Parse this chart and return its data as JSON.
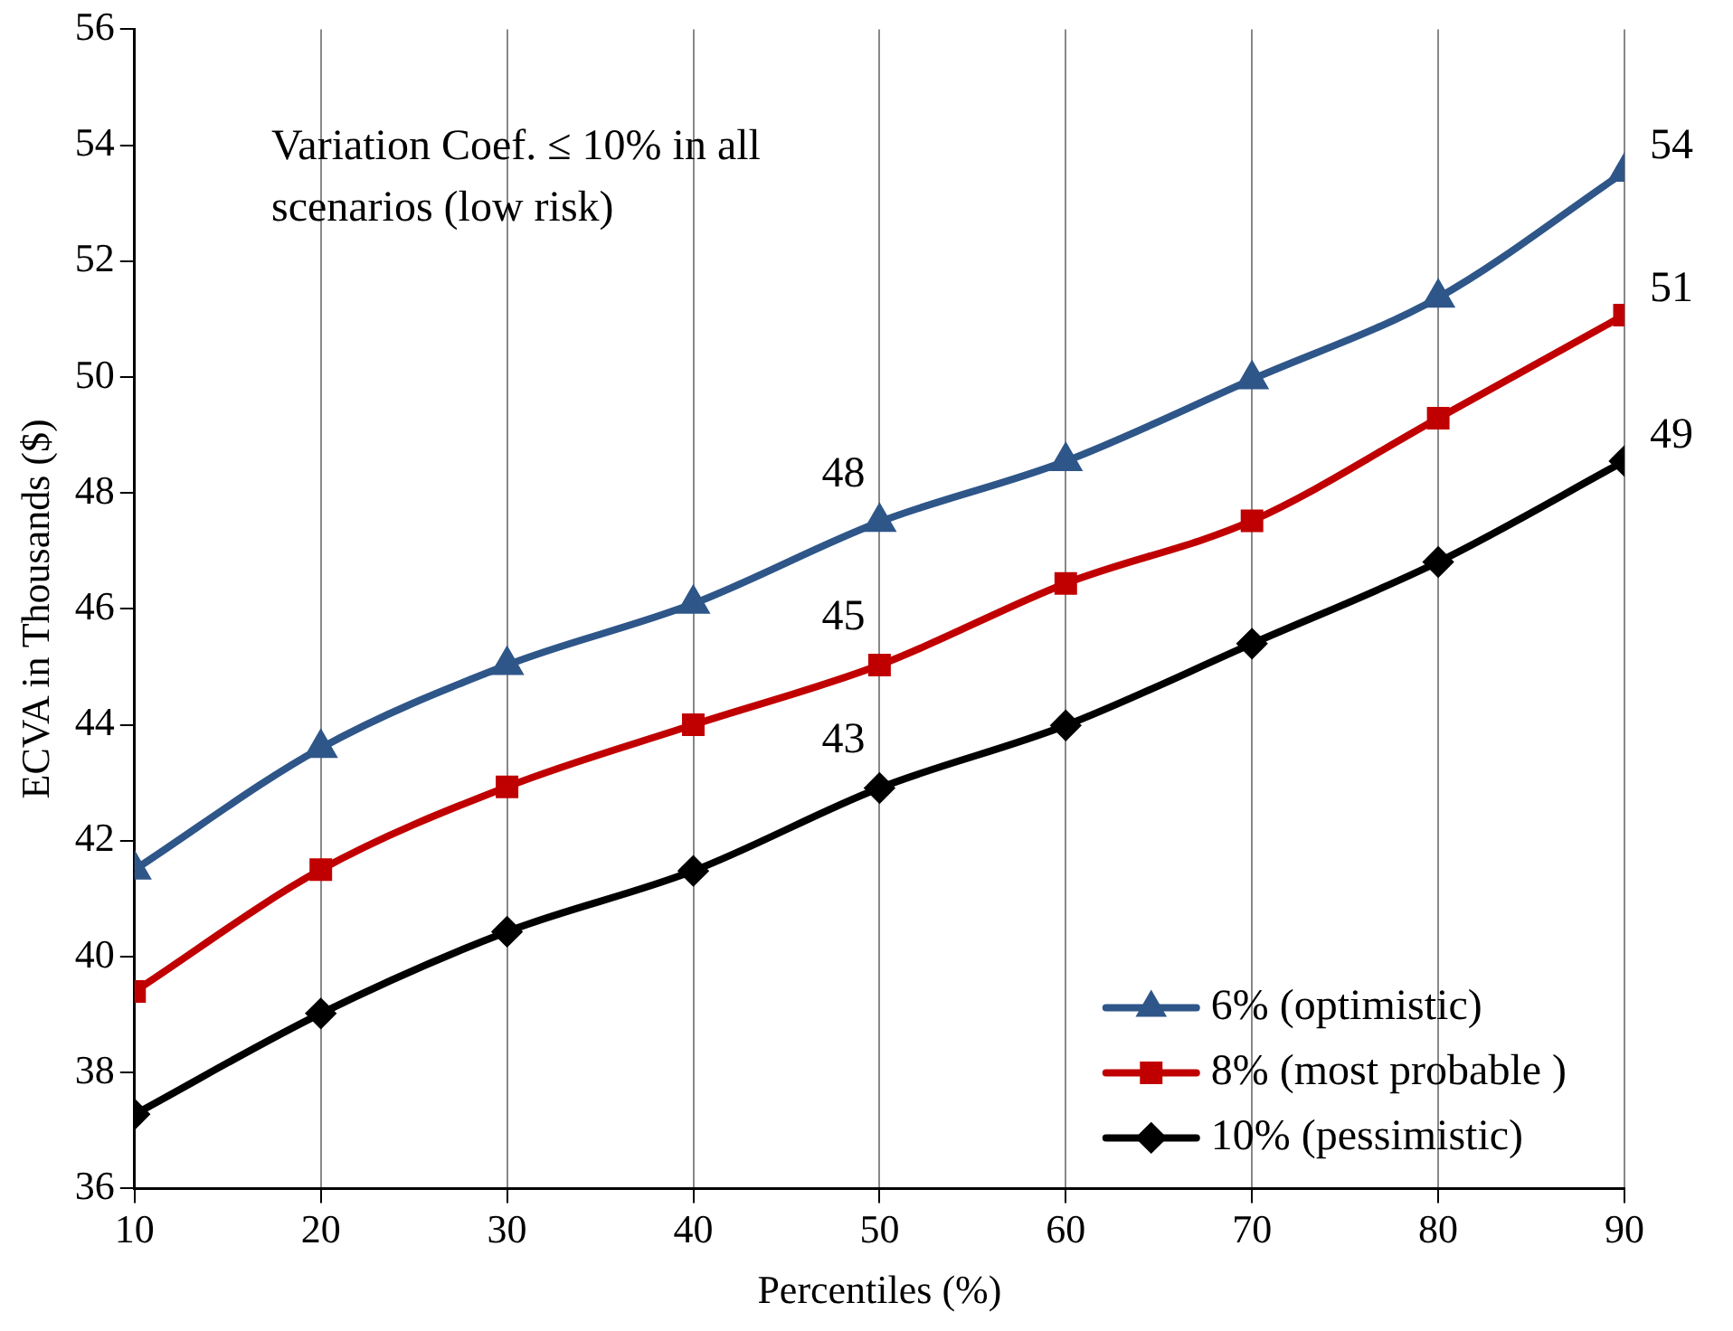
{
  "chart_data": {
    "type": "line",
    "xlabel": "Percentiles (%)",
    "ylabel": "ECVA in Thousands ($)",
    "x": [
      10,
      20,
      30,
      40,
      50,
      60,
      70,
      80,
      90
    ],
    "xlim": [
      10,
      90
    ],
    "xticks": [
      10,
      20,
      30,
      40,
      50,
      60,
      70,
      80,
      90
    ],
    "ylim": [
      36,
      56
    ],
    "yticks": [
      36,
      38,
      40,
      42,
      44,
      46,
      48,
      50,
      52,
      54,
      56
    ],
    "grid": "x",
    "legend": "bottom right",
    "annotations": [
      "Variation Coef. ≤ 10% in all scenarios (low risk)"
    ],
    "series": [
      {
        "name": "6% (optimistic)",
        "color": "#2e5689",
        "marker": "triangle",
        "values": [
          41.5,
          43.6,
          45.03,
          46.09,
          47.5,
          48.55,
          49.96,
          51.37,
          53.54
        ],
        "value_labels": [
          null,
          null,
          null,
          null,
          "48",
          null,
          null,
          null,
          "54"
        ]
      },
      {
        "name": "8% (most probable )",
        "color": "#c00000",
        "marker": "square",
        "values": [
          39.4,
          41.5,
          42.93,
          44.0,
          45.03,
          46.44,
          47.52,
          49.29,
          51.07
        ],
        "value_labels": [
          null,
          null,
          null,
          null,
          "45",
          null,
          null,
          null,
          "51"
        ]
      },
      {
        "name": "10% (pessimistic)",
        "color": "#000000",
        "marker": "diamond",
        "values": [
          37.28,
          39.02,
          40.43,
          41.48,
          42.91,
          43.99,
          45.4,
          46.81,
          48.55
        ],
        "value_labels": [
          null,
          null,
          null,
          null,
          "43",
          null,
          null,
          null,
          "49"
        ]
      }
    ]
  }
}
